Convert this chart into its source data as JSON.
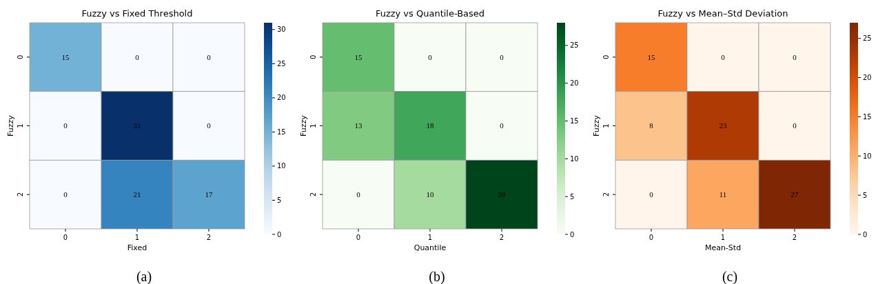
{
  "chart_data": [
    {
      "type": "heatmap",
      "title": "Fuzzy vs Fixed Threshold",
      "xlabel": "Fixed",
      "ylabel": "Fuzzy",
      "categories": [
        "0",
        "1",
        "2"
      ],
      "y_categories": [
        "0",
        "1",
        "2"
      ],
      "cells": [
        [
          15,
          0,
          0
        ],
        [
          0,
          31,
          0
        ],
        [
          0,
          21,
          17
        ]
      ],
      "data_labels": true,
      "clim": [
        0,
        31
      ],
      "cticks": [
        0,
        5,
        10,
        15,
        20,
        25,
        30
      ],
      "colors": [
        "#f7fbff",
        "#deebf7",
        "#c6dbef",
        "#9ecae1",
        "#6baed6",
        "#4292c6",
        "#2171b5",
        "#08519c",
        "#08306b"
      ],
      "annotations": [
        "(a)"
      ]
    },
    {
      "type": "heatmap",
      "title": "Fuzzy vs Quantile-Based",
      "xlabel": "Quantile",
      "ylabel": "Fuzzy",
      "categories": [
        "0",
        "1",
        "2"
      ],
      "y_categories": [
        "0",
        "1",
        "2"
      ],
      "cells": [
        [
          15,
          0,
          0
        ],
        [
          13,
          18,
          0
        ],
        [
          0,
          10,
          28
        ]
      ],
      "data_labels": true,
      "clim": [
        0,
        28
      ],
      "cticks": [
        0,
        5,
        10,
        15,
        20,
        25
      ],
      "colors": [
        "#f7fcf5",
        "#e5f5e0",
        "#c7e9c0",
        "#a1d99b",
        "#74c476",
        "#41ab5d",
        "#238b45",
        "#006d2c",
        "#00441b"
      ],
      "annotations": [
        "(b)"
      ]
    },
    {
      "type": "heatmap",
      "title": "Fuzzy vs Mean–Std Deviation",
      "xlabel": "Mean-Std",
      "ylabel": "Fuzzy",
      "categories": [
        "0",
        "1",
        "2"
      ],
      "y_categories": [
        "0",
        "1",
        "2"
      ],
      "cells": [
        [
          15,
          0,
          0
        ],
        [
          8,
          23,
          0
        ],
        [
          0,
          11,
          27
        ]
      ],
      "data_labels": true,
      "clim": [
        0,
        27
      ],
      "cticks": [
        0,
        5,
        10,
        15,
        20,
        25
      ],
      "colors": [
        "#fff5eb",
        "#fee6ce",
        "#fdd0a2",
        "#fdae6b",
        "#fd8d3c",
        "#f16913",
        "#d94801",
        "#a63603",
        "#7f2704"
      ],
      "annotations": [
        "(c)"
      ]
    }
  ]
}
